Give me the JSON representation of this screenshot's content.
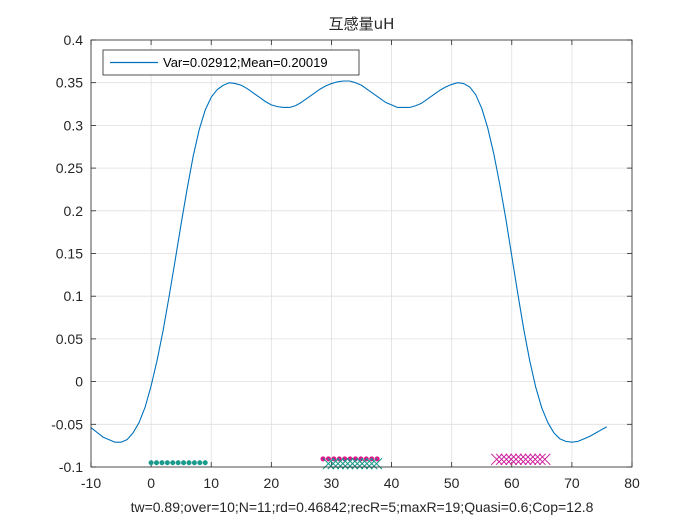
{
  "chart_data": {
    "type": "line",
    "title": "互感量uH",
    "xlabel": "tw=0.89;over=10;N=11;rd=0.46842;recR=5;maxR=19;Quasi=0.6;Cop=12.8",
    "ylabel": "",
    "xlim": [
      -10,
      80
    ],
    "ylim": [
      -0.1,
      0.4
    ],
    "xticks": [
      -10,
      0,
      10,
      20,
      30,
      40,
      50,
      60,
      70,
      80
    ],
    "yticks": [
      -0.1,
      -0.05,
      0,
      0.05,
      0.1,
      0.15,
      0.2,
      0.25,
      0.3,
      0.35,
      0.4
    ],
    "xtick_labels": [
      "-10",
      "0",
      "10",
      "20",
      "30",
      "40",
      "50",
      "60",
      "70",
      "80"
    ],
    "ytick_labels": [
      "-0.1",
      "-0.05",
      "0",
      "0.05",
      "0.1",
      "0.15",
      "0.2",
      "0.25",
      "0.3",
      "0.35",
      "0.4"
    ],
    "grid": true,
    "legend": {
      "placement": "top-left",
      "entries": [
        "Var=0.02912;Mean=0.20019"
      ]
    },
    "series": [
      {
        "name": "Var=0.02912;Mean=0.20019",
        "color": "#0072bd",
        "x": [
          -10,
          -8,
          -6,
          -5,
          -4,
          -3,
          -2,
          -1,
          0,
          1,
          2,
          3,
          4,
          5,
          6,
          7,
          8,
          9,
          10,
          11,
          12,
          13,
          14,
          15,
          16,
          17,
          18,
          19,
          20,
          21,
          22,
          23,
          24,
          25,
          26,
          27,
          28,
          29,
          30,
          31,
          32,
          33,
          34,
          35,
          36,
          37,
          38,
          39,
          40,
          41,
          42,
          43,
          44,
          45,
          46,
          47,
          48,
          49,
          50,
          51,
          52,
          53,
          54,
          55,
          56,
          57,
          58,
          59,
          60,
          61,
          62,
          63,
          64,
          65,
          66,
          67,
          68,
          69,
          70,
          71,
          72,
          73,
          74,
          75,
          75.8
        ],
        "y": [
          -0.054,
          -0.065,
          -0.071,
          -0.071,
          -0.068,
          -0.06,
          -0.048,
          -0.03,
          -0.005,
          0.025,
          0.06,
          0.1,
          0.142,
          0.185,
          0.226,
          0.264,
          0.295,
          0.318,
          0.333,
          0.342,
          0.347,
          0.35,
          0.349,
          0.347,
          0.343,
          0.338,
          0.333,
          0.328,
          0.324,
          0.322,
          0.321,
          0.321,
          0.323,
          0.327,
          0.332,
          0.337,
          0.342,
          0.346,
          0.349,
          0.351,
          0.352,
          0.352,
          0.35,
          0.347,
          0.342,
          0.337,
          0.332,
          0.327,
          0.324,
          0.321,
          0.321,
          0.321,
          0.323,
          0.326,
          0.331,
          0.336,
          0.341,
          0.345,
          0.348,
          0.35,
          0.349,
          0.345,
          0.336,
          0.32,
          0.297,
          0.267,
          0.231,
          0.191,
          0.147,
          0.103,
          0.061,
          0.024,
          -0.007,
          -0.031,
          -0.048,
          -0.06,
          -0.067,
          -0.07,
          -0.071,
          -0.07,
          -0.067,
          -0.064,
          -0.06,
          -0.056,
          -0.053
        ]
      }
    ],
    "markers": [
      {
        "shape": "dot",
        "color": "#1a9a8c",
        "y": -0.095,
        "x": [
          0,
          0.9,
          1.8,
          2.7,
          3.6,
          4.5,
          5.4,
          6.3,
          7.2,
          8.1,
          9.0
        ]
      },
      {
        "shape": "dot",
        "color": "#e0138c",
        "y": -0.0905,
        "x": [
          28.6,
          29.5,
          30.4,
          31.3,
          32.2,
          33.1,
          34.0,
          34.9,
          35.8,
          36.7,
          37.6
        ]
      },
      {
        "shape": "cross",
        "color": "#1a9a8c",
        "y": -0.096,
        "x": [
          29.5,
          30.3,
          31.1,
          31.9,
          32.7,
          33.5,
          34.3,
          35.1,
          35.9,
          36.7,
          37.5
        ]
      },
      {
        "shape": "cross",
        "color": "#cc1a9a",
        "y": -0.091,
        "x": [
          57.5,
          58.3,
          59.1,
          59.9,
          60.7,
          61.5,
          62.3,
          63.1,
          63.9,
          64.7,
          65.5
        ]
      }
    ]
  }
}
